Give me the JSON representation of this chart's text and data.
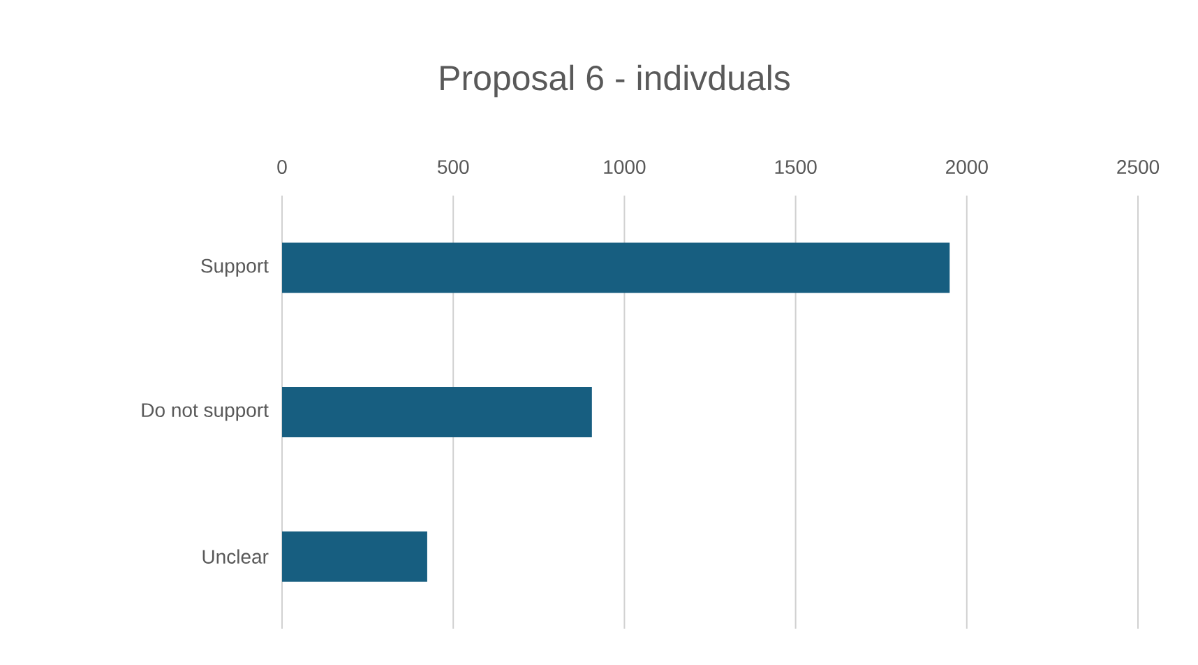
{
  "chart_data": {
    "type": "bar",
    "orientation": "horizontal",
    "title": "Proposal 6 - indivduals",
    "categories": [
      "Support",
      "Do not support",
      "Unclear"
    ],
    "values": [
      1950,
      905,
      424
    ],
    "color": "#175e80",
    "xlim": [
      0,
      2500
    ],
    "xticks": [
      0,
      500,
      1000,
      1500,
      2000,
      2500
    ],
    "grid": "x"
  }
}
